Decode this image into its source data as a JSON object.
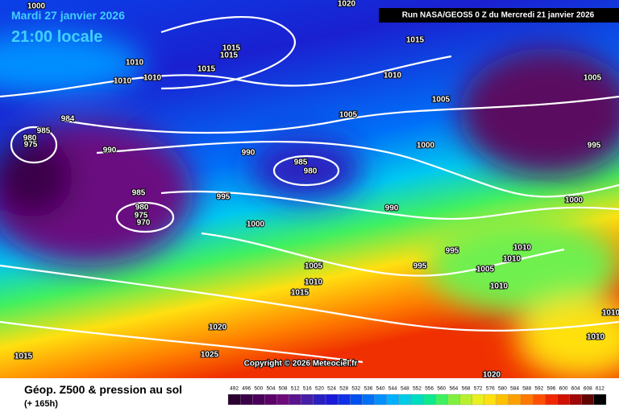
{
  "header": {
    "date": "Mardi 27 janvier 2026",
    "time": "21:00 locale",
    "run": "Run NASA/GEOS5 0 Z du Mercredi 21 janvier 2026",
    "copyright": "Copyright © 2026 Meteociel.fr"
  },
  "footer": {
    "title": "Géop. Z500 & pression au sol",
    "lead": "(+ 165h)"
  },
  "isobar_labels": [
    "1000",
    "1020",
    "1015",
    "1010",
    "1010",
    "1010",
    "1015",
    "1015",
    "1015",
    "1010",
    "1005",
    "1005",
    "1005",
    "985",
    "980",
    "975",
    "984",
    "990",
    "990",
    "985",
    "980",
    "995",
    "1000",
    "985",
    "980",
    "975",
    "970",
    "995",
    "1000",
    "990",
    "1000",
    "1005",
    "1010",
    "1015",
    "995",
    "995",
    "1005",
    "1010",
    "1010",
    "1010",
    "1020",
    "1025",
    "1015",
    "1010",
    "1010",
    "1020"
  ],
  "legend": {
    "values": [
      492,
      496,
      500,
      504,
      508,
      512,
      516,
      520,
      524,
      528,
      532,
      536,
      540,
      544,
      548,
      552,
      556,
      560,
      564,
      568,
      572,
      576,
      580,
      584,
      588,
      592,
      596,
      600,
      604,
      608,
      612
    ],
    "colors": [
      "#2a0030",
      "#3a0048",
      "#4a005a",
      "#5c006a",
      "#6e0a7a",
      "#5a1490",
      "#461ea8",
      "#2a20c0",
      "#1a1ad8",
      "#1030e8",
      "#0050f0",
      "#0070f8",
      "#0090ff",
      "#00b0ff",
      "#00cce8",
      "#00ddc0",
      "#10e890",
      "#40f060",
      "#80f040",
      "#b8f030",
      "#e8f020",
      "#ffe010",
      "#ffc000",
      "#ffa000",
      "#ff7800",
      "#ff5000",
      "#f02800",
      "#d01000",
      "#a00808",
      "#600404",
      "#000000"
    ]
  }
}
